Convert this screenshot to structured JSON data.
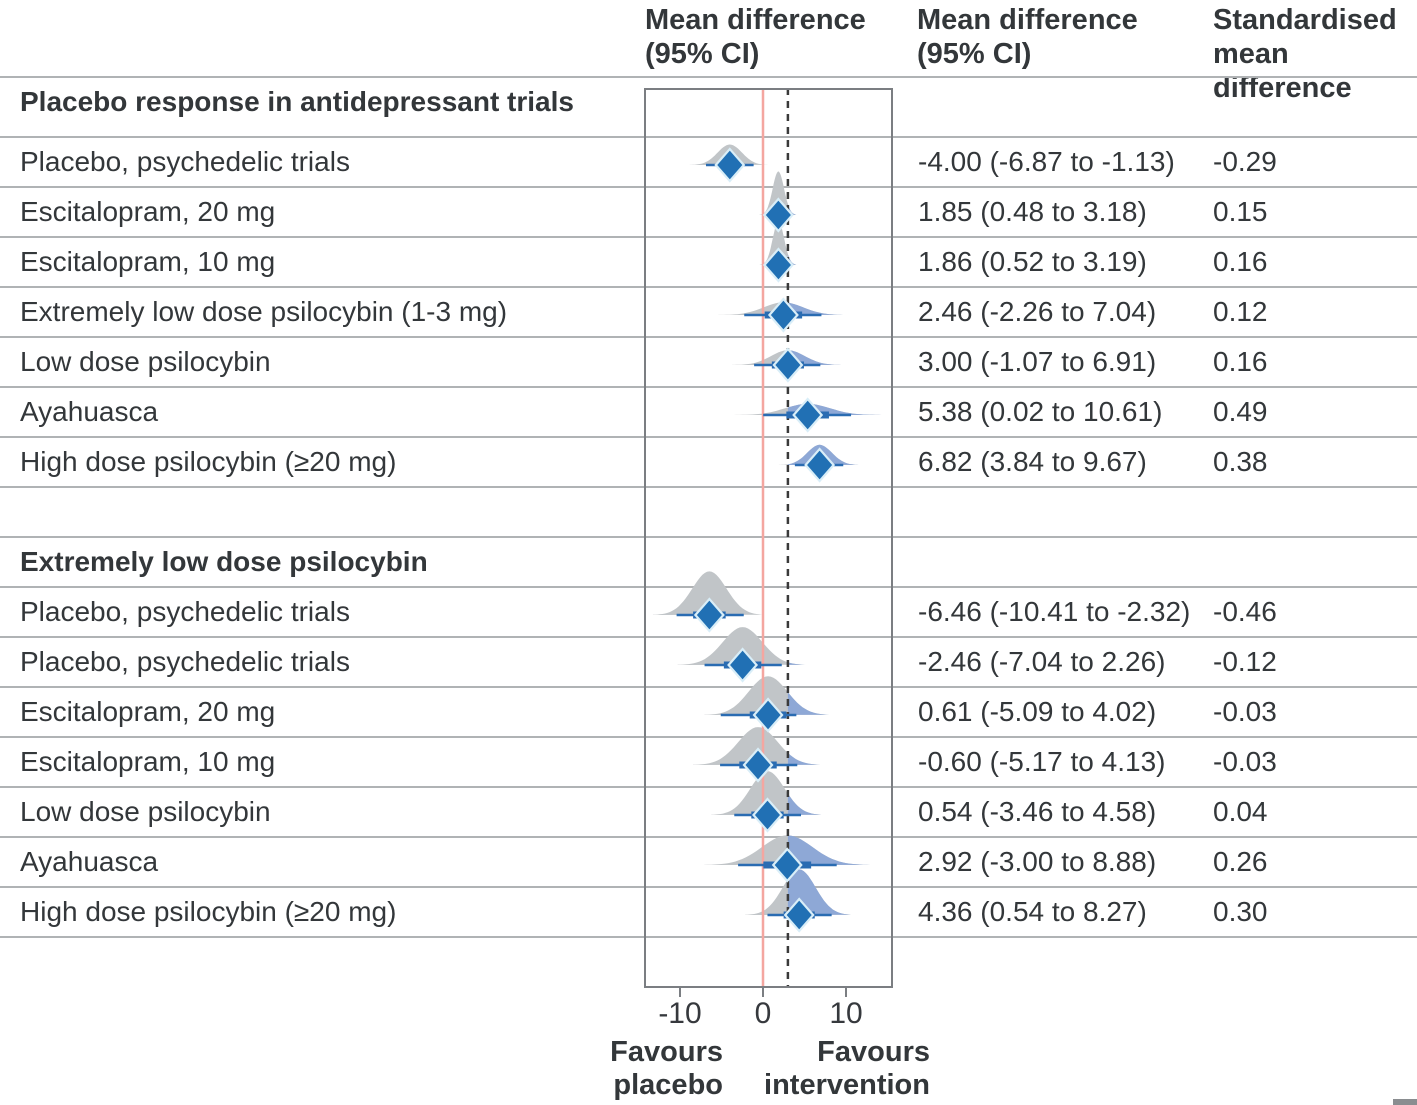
{
  "headers": {
    "col1": [
      "Mean difference",
      "(95% CI)"
    ],
    "col2": [
      "Mean difference",
      "(95% CI)"
    ],
    "col3": [
      "Standardised",
      "mean",
      "difference"
    ]
  },
  "colors": {
    "text": "#33373a",
    "gridline": "#b0b3b5",
    "plot_border": "#7b7e82",
    "zero_line_red": "#f4a6a0",
    "threshold_dash": "#3a3a3a",
    "density_gray": "#c1c5c8",
    "density_blue": "#8ea8d6",
    "diamond_fill": "#2170b4",
    "diamond_stroke": "#d9eef8",
    "ci_line": "#2a6cb2",
    "corner_bar": "#8a8d90"
  },
  "chart_data": {
    "type": "forest",
    "x_axis_label_left": "Favours placebo",
    "x_axis_label_right": "Favours intervention",
    "favours_left": [
      "Favours",
      "placebo"
    ],
    "favours_right": [
      "Favours",
      "intervention"
    ],
    "x_ticks": [
      -10,
      0,
      10
    ],
    "x_tick_labels": [
      "-10",
      "0",
      "10"
    ],
    "xlim": [
      -14.3,
      15.5
    ],
    "grid": "horizontal row separators, full width",
    "reference_lines": {
      "solid_zero": 0,
      "dashed_threshold": 3
    },
    "sections": [
      {
        "title": "Placebo response in antidepressant trials",
        "rows": [
          {
            "label": "Placebo, psychedelic trials",
            "mean": -4.0,
            "lo": -6.87,
            "hi": -1.13,
            "ci_text": "-4.00 (-6.87 to -1.13)",
            "smd_text": "-0.29"
          },
          {
            "label": "Escitalopram, 20 mg",
            "mean": 1.85,
            "lo": 0.48,
            "hi": 3.18,
            "ci_text": "1.85 (0.48 to 3.18)",
            "smd_text": "0.15"
          },
          {
            "label": "Escitalopram, 10 mg",
            "mean": 1.86,
            "lo": 0.52,
            "hi": 3.19,
            "ci_text": "1.86 (0.52 to 3.19)",
            "smd_text": "0.16"
          },
          {
            "label": "Extremely low dose psilocybin (1-3 mg)",
            "mean": 2.46,
            "lo": -2.26,
            "hi": 7.04,
            "ci_text": "2.46 (-2.26 to 7.04)",
            "smd_text": "0.12"
          },
          {
            "label": "Low dose psilocybin",
            "mean": 3.0,
            "lo": -1.07,
            "hi": 6.91,
            "ci_text": "3.00 (-1.07 to 6.91)",
            "smd_text": "0.16"
          },
          {
            "label": "Ayahuasca",
            "mean": 5.38,
            "lo": 0.02,
            "hi": 10.61,
            "ci_text": "5.38 (0.02 to 10.61)",
            "smd_text": "0.49"
          },
          {
            "label": "High dose psilocybin (≥20 mg)",
            "mean": 6.82,
            "lo": 3.84,
            "hi": 9.67,
            "ci_text": "6.82 (3.84 to 9.67)",
            "smd_text": "0.38"
          }
        ]
      },
      {
        "title": "Extremely low dose psilocybin",
        "rows": [
          {
            "label": "Placebo, psychedelic trials",
            "mean": -6.46,
            "lo": -10.41,
            "hi": -2.32,
            "ci_text": "-6.46 (-10.41 to -2.32)",
            "smd_text": "-0.46"
          },
          {
            "label": "Placebo, psychedelic trials",
            "mean": -2.46,
            "lo": -7.04,
            "hi": 2.26,
            "ci_text": "-2.46 (-7.04 to 2.26)",
            "smd_text": "-0.12"
          },
          {
            "label": "Escitalopram, 20 mg",
            "mean": 0.61,
            "lo": -5.09,
            "hi": 4.02,
            "ci_text": "0.61 (-5.09 to 4.02)",
            "smd_text": "-0.03"
          },
          {
            "label": "Escitalopram, 10 mg",
            "mean": -0.6,
            "lo": -5.17,
            "hi": 4.13,
            "ci_text": "-0.60 (-5.17 to 4.13)",
            "smd_text": "-0.03"
          },
          {
            "label": "Low dose psilocybin",
            "mean": 0.54,
            "lo": -3.46,
            "hi": 4.58,
            "ci_text": "0.54 (-3.46 to 4.58)",
            "smd_text": "0.04"
          },
          {
            "label": "Ayahuasca",
            "mean": 2.92,
            "lo": -3.0,
            "hi": 8.88,
            "ci_text": "2.92 (-3.00 to 8.88)",
            "smd_text": "0.26"
          },
          {
            "label": "High dose psilocybin (≥20 mg)",
            "mean": 4.36,
            "lo": 0.54,
            "hi": 8.27,
            "ci_text": "4.36 (0.54 to 8.27)",
            "smd_text": "0.30"
          }
        ]
      }
    ]
  }
}
